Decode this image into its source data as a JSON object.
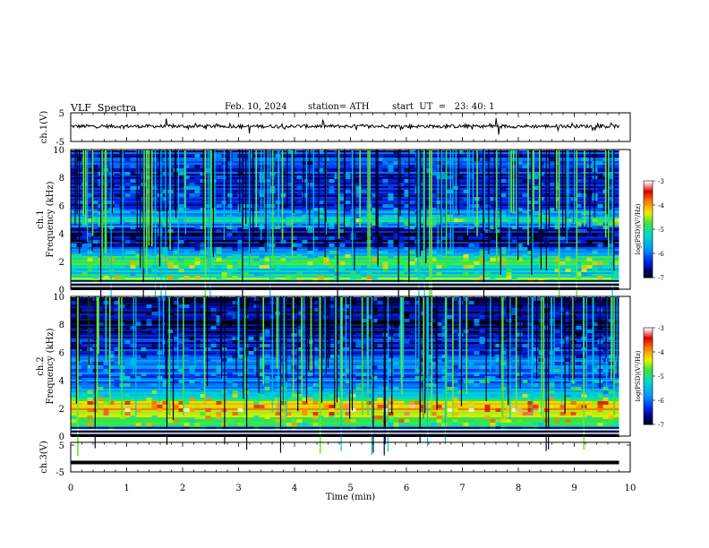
{
  "header": {
    "title": "VLF  Spectra",
    "date": "Feb. 10, 2024",
    "station": "station= ATH",
    "start": "start  UT  =   23: 40: 1"
  },
  "chart_data": [
    {
      "type": "line",
      "name": "channel-1-waveform",
      "ylabel": "ch.1(V)",
      "ylim": [
        -5,
        5
      ],
      "yticks": [
        "5",
        "-5"
      ],
      "xlim": [
        0,
        10
      ],
      "note_values": "noisy waveform centred slightly above 0 V, spikes up to about ±3 V",
      "y_center": 0.3,
      "y_noise_amplitude": 0.6,
      "x_end": 9.8,
      "spikes": [
        {
          "x": 1.7,
          "y": 3.0
        },
        {
          "x": 3.2,
          "y": -2.2
        },
        {
          "x": 4.5,
          "y": 2.4
        },
        {
          "x": 7.6,
          "y": 3.2
        },
        {
          "x": 7.65,
          "y": -2.6
        }
      ]
    },
    {
      "type": "heatmap",
      "name": "channel-1-spectrogram",
      "ylabel": "ch.1\nFrequency  (kHz)",
      "ylim": [
        0,
        10
      ],
      "yticks": [
        "0",
        "2",
        "4",
        "6",
        "8",
        "10"
      ],
      "xlim": [
        0,
        9.8
      ],
      "colorbar": {
        "label": "log(PSD)(V²/Hz)",
        "range": [
          -7,
          -3
        ],
        "ticks": [
          "-3",
          "-4",
          "-5",
          "-6",
          "-7"
        ]
      },
      "bands_khz": [
        {
          "f": 0.3,
          "level": -7
        },
        {
          "f": 0.8,
          "level": -4.5
        },
        {
          "f": 1.2,
          "level": -5.4
        },
        {
          "f": 2.0,
          "level": -4.9
        },
        {
          "f": 2.3,
          "level": -5.0
        },
        {
          "f": 3.0,
          "level": -6.2
        },
        {
          "f": 3.5,
          "level": -6.6
        },
        {
          "f": 4.1,
          "level": -6.8
        },
        {
          "f": 5.0,
          "level": -5.2
        },
        {
          "f": 6.0,
          "level": -6.3
        },
        {
          "f": 9.0,
          "level": -6.4
        }
      ]
    },
    {
      "type": "heatmap",
      "name": "channel-2-spectrogram",
      "ylabel": "ch.2\nFrequency  (kHz)",
      "ylim": [
        0,
        10
      ],
      "yticks": [
        "0",
        "2",
        "4",
        "6",
        "8",
        "10"
      ],
      "xlim": [
        0,
        9.8
      ],
      "colorbar": {
        "label": "log(PSD)(V²/Hz)",
        "range": [
          -7,
          -3
        ],
        "ticks": [
          "-3",
          "-4",
          "-5",
          "-6",
          "-7"
        ]
      },
      "bands_khz": [
        {
          "f": 0.3,
          "level": -7
        },
        {
          "f": 1.0,
          "level": -4.8
        },
        {
          "f": 1.5,
          "level": -4.6
        },
        {
          "f": 2.0,
          "level": -3.8
        },
        {
          "f": 2.5,
          "level": -4.4
        },
        {
          "f": 3.0,
          "level": -5.2
        },
        {
          "f": 3.5,
          "level": -5.6
        },
        {
          "f": 4.0,
          "level": -5.9
        },
        {
          "f": 5.0,
          "level": -6.0
        },
        {
          "f": 7.0,
          "level": -6.5
        },
        {
          "f": 9.0,
          "level": -6.8
        }
      ]
    },
    {
      "type": "line",
      "name": "channel-3-waveform",
      "ylabel": "ch.3(V)",
      "ylim": [
        -5,
        5
      ],
      "yticks": [
        "5",
        "-5"
      ],
      "xlim": [
        0,
        10
      ],
      "y_center": -1.8,
      "x_end": 9.8
    }
  ],
  "xaxis": {
    "label": "Time  (min)",
    "ticks": [
      "0",
      "1",
      "2",
      "3",
      "4",
      "5",
      "6",
      "7",
      "8",
      "9",
      "10"
    ]
  }
}
